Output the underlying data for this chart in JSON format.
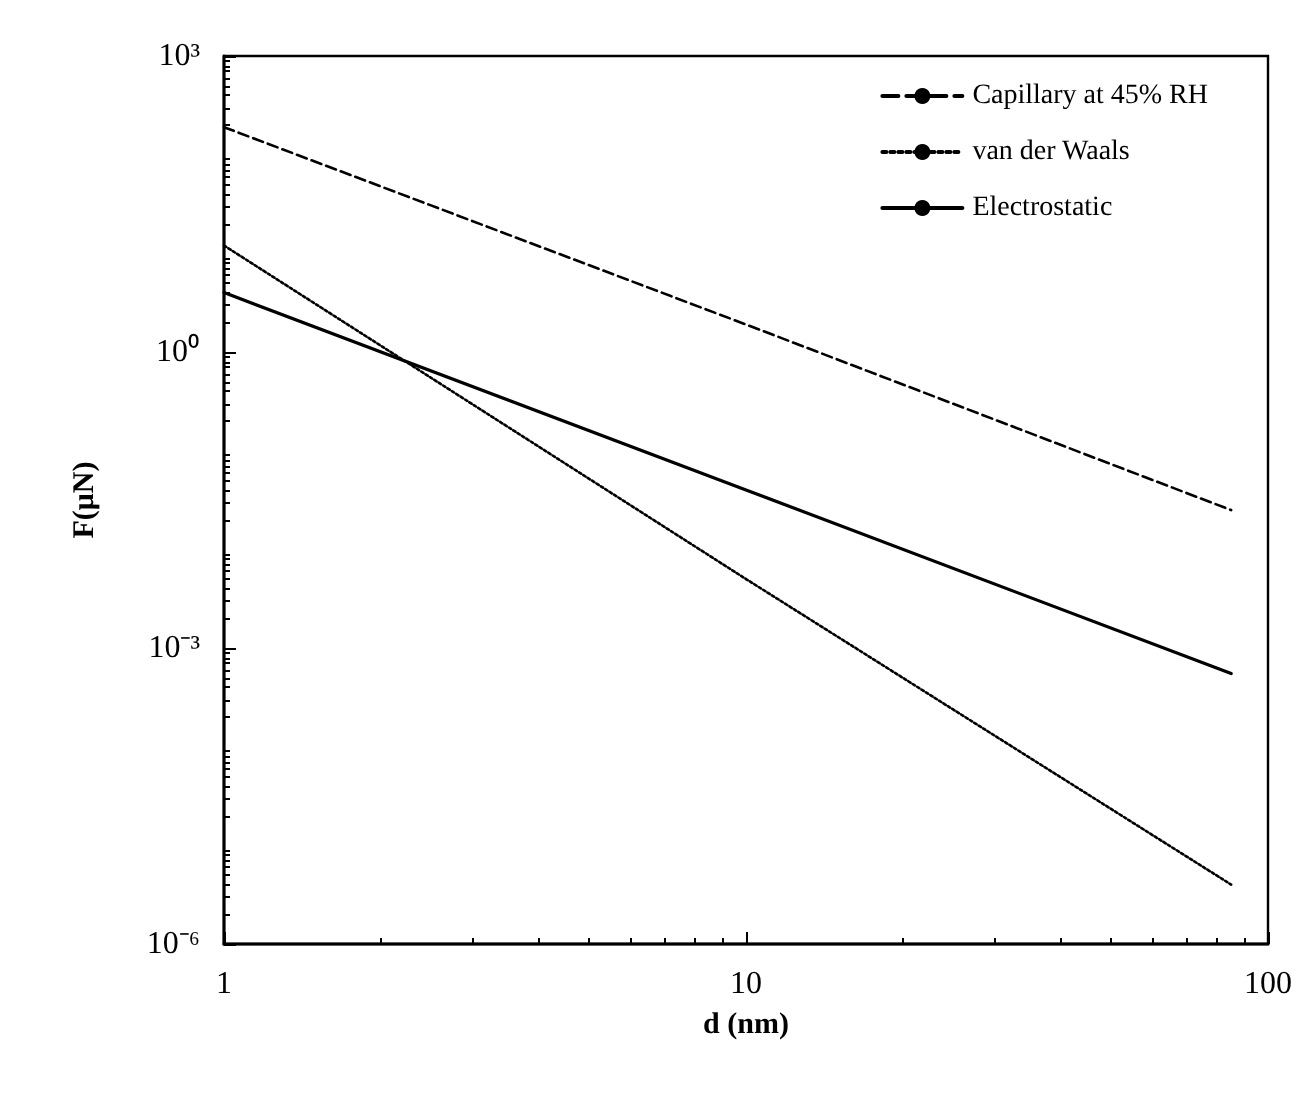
{
  "chart_data": {
    "type": "line",
    "xlabel": "d (nm)",
    "ylabel": "F(μN)",
    "log": "xy",
    "legend": "top right",
    "grid": false,
    "marker": "none",
    "x": [
      1,
      10,
      85
    ],
    "xlim": [
      1,
      100
    ],
    "xticks": [
      1,
      10,
      100
    ],
    "ylim": [
      1e-06,
      1000
    ],
    "yticks": [
      {
        "value": 1e-06,
        "label": "10⁻⁶"
      },
      {
        "value": 0.001,
        "label": "10⁻³"
      },
      {
        "value": 1,
        "label": "10⁰"
      },
      {
        "value": 1000,
        "label": "10³"
      }
    ],
    "series": [
      {
        "name": "Capillary at 45% RH",
        "color": "#000000",
        "line_style": "dashed",
        "values": [
          190,
          1.9,
          0.025
        ]
      },
      {
        "name": "van der Waals",
        "color": "#000000",
        "line_style": "dotted",
        "values": [
          12,
          0.005,
          4e-06
        ]
      },
      {
        "name": "Electrostatic",
        "color": "#000000",
        "line_style": "solid",
        "values": [
          4,
          0.04,
          0.00055
        ]
      }
    ]
  }
}
